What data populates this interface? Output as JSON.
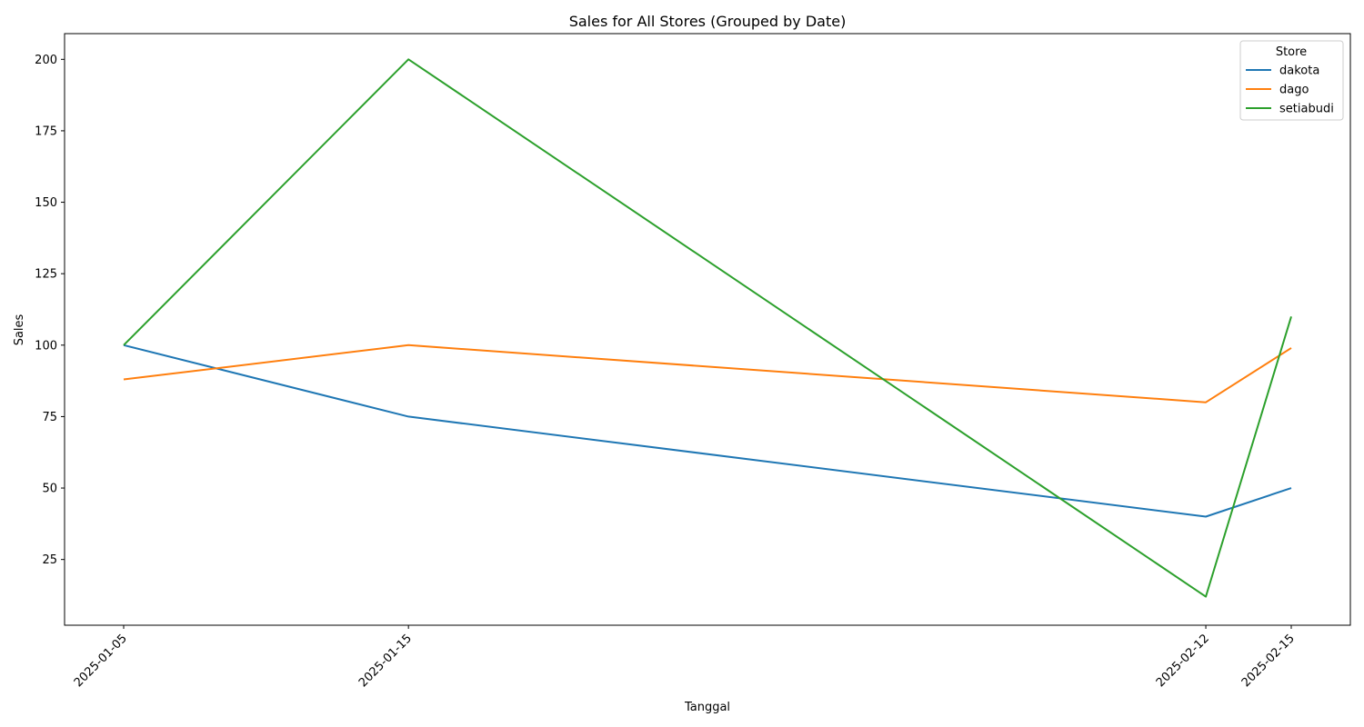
{
  "chart_data": {
    "type": "line",
    "title": "Sales for All Stores (Grouped by Date)",
    "xlabel": "Tanggal",
    "ylabel": "Sales",
    "x": [
      "2025-01-05",
      "2025-01-15",
      "2025-02-12",
      "2025-02-15"
    ],
    "ylim": [
      2,
      209
    ],
    "yticks": [
      25,
      50,
      75,
      100,
      125,
      150,
      175,
      200
    ],
    "grid": false,
    "legend": {
      "title": "Store",
      "placement": "top-right"
    },
    "series": [
      {
        "name": "dakota",
        "color": "#1f77b4",
        "values": [
          100,
          75,
          40,
          50
        ]
      },
      {
        "name": "dago",
        "color": "#ff7f0e",
        "values": [
          88,
          100,
          80,
          99
        ]
      },
      {
        "name": "setiabudi",
        "color": "#2ca02c",
        "values": [
          100,
          200,
          12,
          110
        ]
      }
    ]
  }
}
